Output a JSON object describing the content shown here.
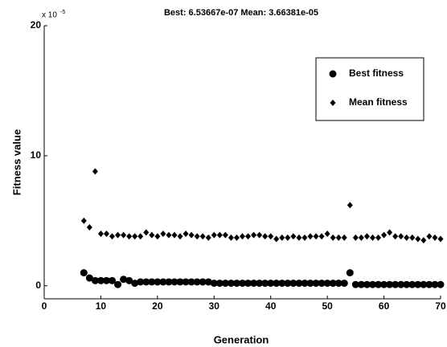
{
  "chart_data": {
    "type": "scatter",
    "title": "Best: 6.53667e-07 Mean: 3.66381e-05",
    "x_label": "Generation",
    "y_label": "Fitness value",
    "y_multiplier": "x 10",
    "y_exponent": "-5",
    "x": [
      7,
      8,
      9,
      10,
      11,
      12,
      13,
      14,
      15,
      16,
      17,
      18,
      19,
      20,
      21,
      22,
      23,
      24,
      25,
      26,
      27,
      28,
      29,
      30,
      31,
      32,
      33,
      34,
      35,
      36,
      37,
      38,
      39,
      40,
      41,
      42,
      43,
      44,
      45,
      46,
      47,
      48,
      49,
      50,
      51,
      52,
      53,
      54,
      55,
      56,
      57,
      58,
      59,
      60,
      61,
      62,
      63,
      64,
      65,
      66,
      67,
      68,
      69,
      70
    ],
    "series": [
      {
        "name": "Best fitness",
        "color": "#000000",
        "marker": "circle",
        "values": [
          1.0,
          0.6,
          0.4,
          0.4,
          0.4,
          0.4,
          0.1,
          0.5,
          0.4,
          0.2,
          0.3,
          0.3,
          0.3,
          0.3,
          0.3,
          0.3,
          0.3,
          0.3,
          0.3,
          0.3,
          0.3,
          0.3,
          0.3,
          0.2,
          0.2,
          0.2,
          0.2,
          0.2,
          0.2,
          0.2,
          0.2,
          0.2,
          0.2,
          0.2,
          0.2,
          0.2,
          0.2,
          0.2,
          0.2,
          0.2,
          0.2,
          0.2,
          0.2,
          0.2,
          0.2,
          0.2,
          0.2,
          1.0,
          0.1,
          0.1,
          0.1,
          0.1,
          0.1,
          0.1,
          0.1,
          0.1,
          0.1,
          0.1,
          0.1,
          0.1,
          0.1,
          0.1,
          0.1,
          0.1
        ]
      },
      {
        "name": "Mean fitness",
        "color": "#000000",
        "marker": "diamond",
        "values": [
          5.0,
          4.5,
          8.8,
          4.0,
          4.0,
          3.8,
          3.9,
          3.9,
          3.8,
          3.8,
          3.8,
          4.1,
          3.9,
          3.8,
          4.0,
          3.9,
          3.9,
          3.8,
          4.0,
          3.9,
          3.8,
          3.8,
          3.7,
          3.9,
          3.9,
          3.9,
          3.7,
          3.7,
          3.8,
          3.8,
          3.9,
          3.9,
          3.8,
          3.8,
          3.6,
          3.7,
          3.7,
          3.8,
          3.7,
          3.7,
          3.8,
          3.8,
          3.8,
          4.0,
          3.7,
          3.7,
          3.7,
          6.2,
          3.7,
          3.7,
          3.8,
          3.7,
          3.7,
          3.9,
          4.1,
          3.8,
          3.8,
          3.7,
          3.7,
          3.6,
          3.5,
          3.8,
          3.7,
          3.6
        ]
      }
    ],
    "xlim": [
      0,
      70
    ],
    "xticks": [
      0,
      10,
      20,
      30,
      40,
      50,
      60,
      70
    ],
    "ylim": [
      -1,
      20
    ],
    "yticks": [
      0,
      10,
      20
    ],
    "grid": false
  }
}
